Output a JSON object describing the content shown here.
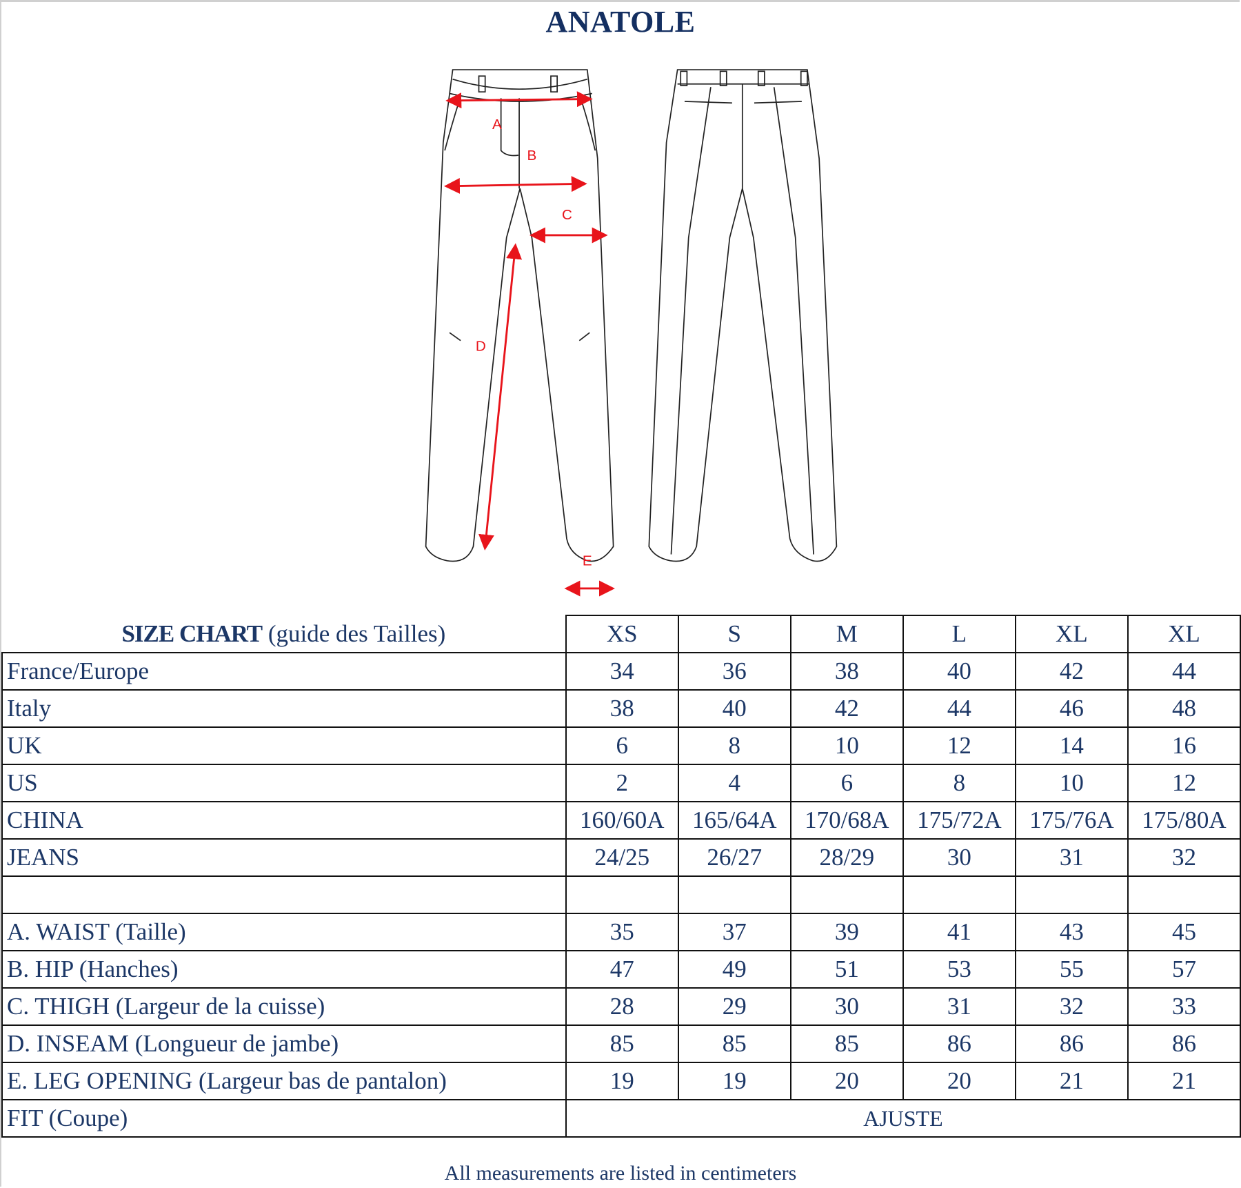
{
  "brand": "ANATOLE",
  "diagram_labels": [
    "A",
    "B",
    "C",
    "D",
    "E"
  ],
  "colors": {
    "text": "#1c3766",
    "arrows": "#e8141b"
  },
  "table": {
    "title_bold": "SIZE CHART",
    "title_rest": "(guide des Tailles)",
    "sizes": [
      "XS",
      "S",
      "M",
      "L",
      "XL",
      "XL"
    ],
    "rows": [
      {
        "label": "France/Europe",
        "values": [
          "34",
          "36",
          "38",
          "40",
          "42",
          "44"
        ]
      },
      {
        "label": "Italy",
        "values": [
          "38",
          "40",
          "42",
          "44",
          "46",
          "48"
        ]
      },
      {
        "label": "UK",
        "values": [
          "6",
          "8",
          "10",
          "12",
          "14",
          "16"
        ]
      },
      {
        "label": "US",
        "values": [
          "2",
          "4",
          "6",
          "8",
          "10",
          "12"
        ]
      },
      {
        "label": "CHINA",
        "values": [
          "160/60A",
          "165/64A",
          "170/68A",
          "175/72A",
          "175/76A",
          "175/80A"
        ]
      },
      {
        "label": "JEANS",
        "values": [
          "24/25",
          "26/27",
          "28/29",
          "30",
          "31",
          "32"
        ]
      },
      {
        "label": "",
        "values": [
          "",
          "",
          "",
          "",
          "",
          ""
        ]
      },
      {
        "label": "A. WAIST (Taille)",
        "values": [
          "35",
          "37",
          "39",
          "41",
          "43",
          "45"
        ]
      },
      {
        "label": "B. HIP (Hanches)",
        "values": [
          "47",
          "49",
          "51",
          "53",
          "55",
          "57"
        ]
      },
      {
        "label": "C. THIGH  (Largeur de la cuisse)",
        "values": [
          "28",
          "29",
          "30",
          "31",
          "32",
          "33"
        ]
      },
      {
        "label": "D. INSEAM  (Longueur de jambe)",
        "values": [
          "85",
          "85",
          "85",
          "86",
          "86",
          "86"
        ]
      },
      {
        "label": "E. LEG OPENING (Largeur bas de pantalon)",
        "values": [
          "19",
          "19",
          "20",
          "20",
          "21",
          "21"
        ]
      }
    ],
    "fit_label": "FIT (Coupe)",
    "fit_value": "AJUSTE"
  },
  "footer": "All measurements are listed in centimeters"
}
